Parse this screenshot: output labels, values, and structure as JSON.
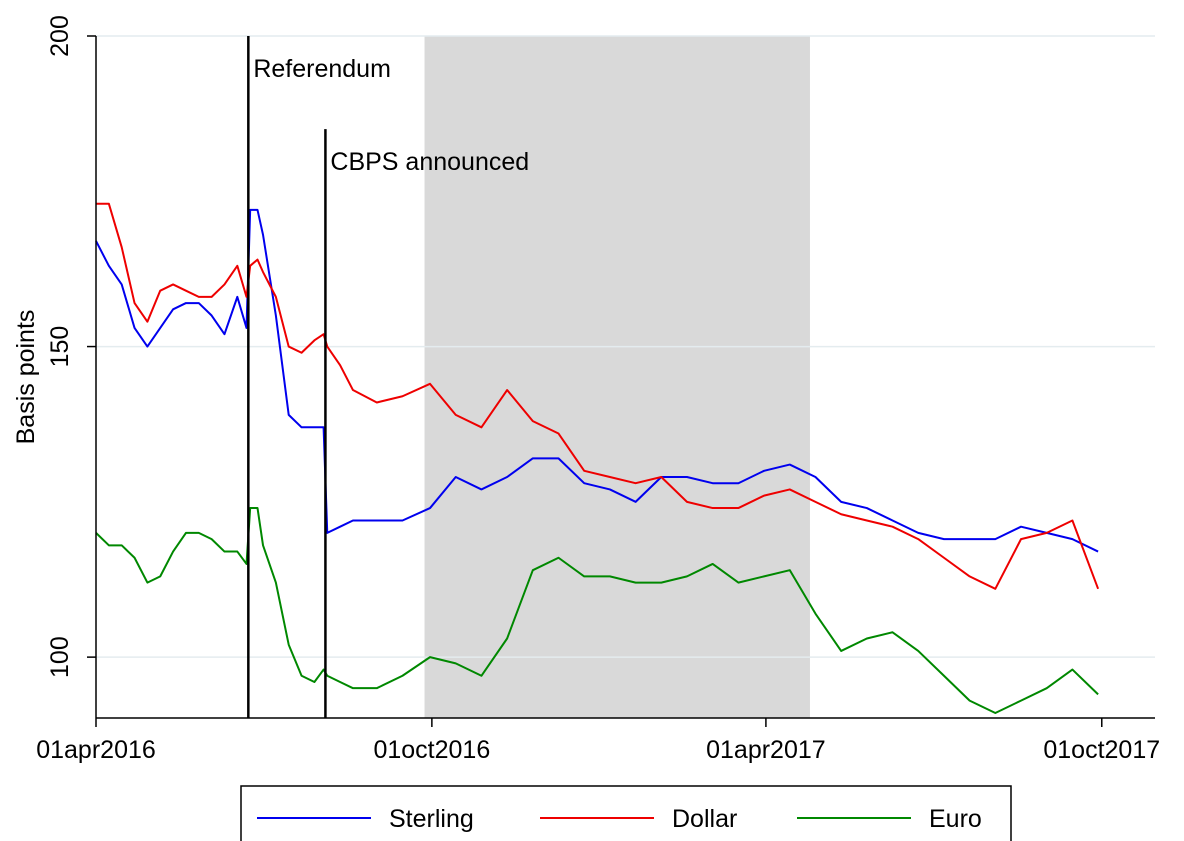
{
  "chart_data": {
    "type": "line",
    "y_label": "Basis points",
    "x": [
      "2016-04-01",
      "2016-04-08",
      "2016-04-15",
      "2016-04-22",
      "2016-04-29",
      "2016-05-06",
      "2016-05-13",
      "2016-05-20",
      "2016-05-27",
      "2016-06-03",
      "2016-06-10",
      "2016-06-17",
      "2016-06-22",
      "2016-06-24",
      "2016-06-28",
      "2016-07-01",
      "2016-07-08",
      "2016-07-15",
      "2016-07-22",
      "2016-07-29",
      "2016-08-03",
      "2016-08-05",
      "2016-08-12",
      "2016-08-19",
      "2016-09-01",
      "2016-09-15",
      "2016-09-30",
      "2016-10-14",
      "2016-10-28",
      "2016-11-11",
      "2016-11-25",
      "2016-12-09",
      "2016-12-23",
      "2017-01-06",
      "2017-01-20",
      "2017-02-03",
      "2017-02-17",
      "2017-03-03",
      "2017-03-17",
      "2017-03-31",
      "2017-04-14",
      "2017-04-28",
      "2017-05-12",
      "2017-05-26",
      "2017-06-09",
      "2017-06-23",
      "2017-07-07",
      "2017-07-21",
      "2017-08-04",
      "2017-08-18",
      "2017-09-01",
      "2017-09-15",
      "2017-09-29"
    ],
    "series": [
      {
        "name": "Sterling",
        "color": "#0000ee",
        "values": [
          167,
          163,
          160,
          153,
          150,
          153,
          156,
          157,
          157,
          155,
          152,
          158,
          153,
          172,
          172,
          168,
          155,
          139,
          137,
          137,
          137,
          120,
          121,
          122,
          122,
          122,
          124,
          129,
          127,
          129,
          132,
          132,
          128,
          127,
          125,
          129,
          129,
          128,
          128,
          130,
          131,
          129,
          125,
          124,
          122,
          120,
          119,
          119,
          119,
          121,
          120,
          119,
          117
        ]
      },
      {
        "name": "Dollar",
        "color": "#ee0000",
        "values": [
          173,
          173,
          166,
          157,
          154,
          159,
          160,
          159,
          158,
          158,
          160,
          163,
          158,
          163,
          164,
          162,
          158,
          150,
          149,
          151,
          152,
          150,
          147,
          143,
          141,
          142,
          144,
          139,
          137,
          143,
          138,
          136,
          130,
          129,
          128,
          129,
          125,
          124,
          124,
          126,
          127,
          125,
          123,
          122,
          121,
          119,
          116,
          113,
          111,
          119,
          120,
          122,
          111
        ]
      },
      {
        "name": "Euro",
        "color": "#008800",
        "values": [
          120,
          118,
          118,
          116,
          112,
          113,
          117,
          120,
          120,
          119,
          117,
          117,
          115,
          124,
          124,
          118,
          112,
          102,
          97,
          96,
          98,
          97,
          96,
          95,
          95,
          97,
          100,
          99,
          97,
          103,
          114,
          116,
          113,
          113,
          112,
          112,
          113,
          115,
          112,
          113,
          114,
          107,
          101,
          103,
          104,
          101,
          97,
          93,
          91,
          93,
          95,
          98,
          94
        ]
      }
    ],
    "xlim": [
      "2016-04-01",
      "2017-10-30"
    ],
    "xticks": [
      {
        "value": "2016-04-01",
        "label": "01apr2016"
      },
      {
        "value": "2016-10-01",
        "label": "01oct2016"
      },
      {
        "value": "2017-04-01",
        "label": "01apr2017"
      },
      {
        "value": "2017-10-01",
        "label": "01oct2017"
      }
    ],
    "ylim": [
      90.2,
      200
    ],
    "yticks": [
      100,
      150,
      200
    ],
    "grid": true,
    "shaded": {
      "start": "2016-09-27",
      "end": "2017-04-25",
      "color": "#d9d9d9"
    },
    "annotations": [
      {
        "label": "Referendum",
        "x": "2016-06-23",
        "y": 200
      },
      {
        "label": "CBPS announced",
        "x": "2016-08-04",
        "y": 185
      }
    ]
  }
}
